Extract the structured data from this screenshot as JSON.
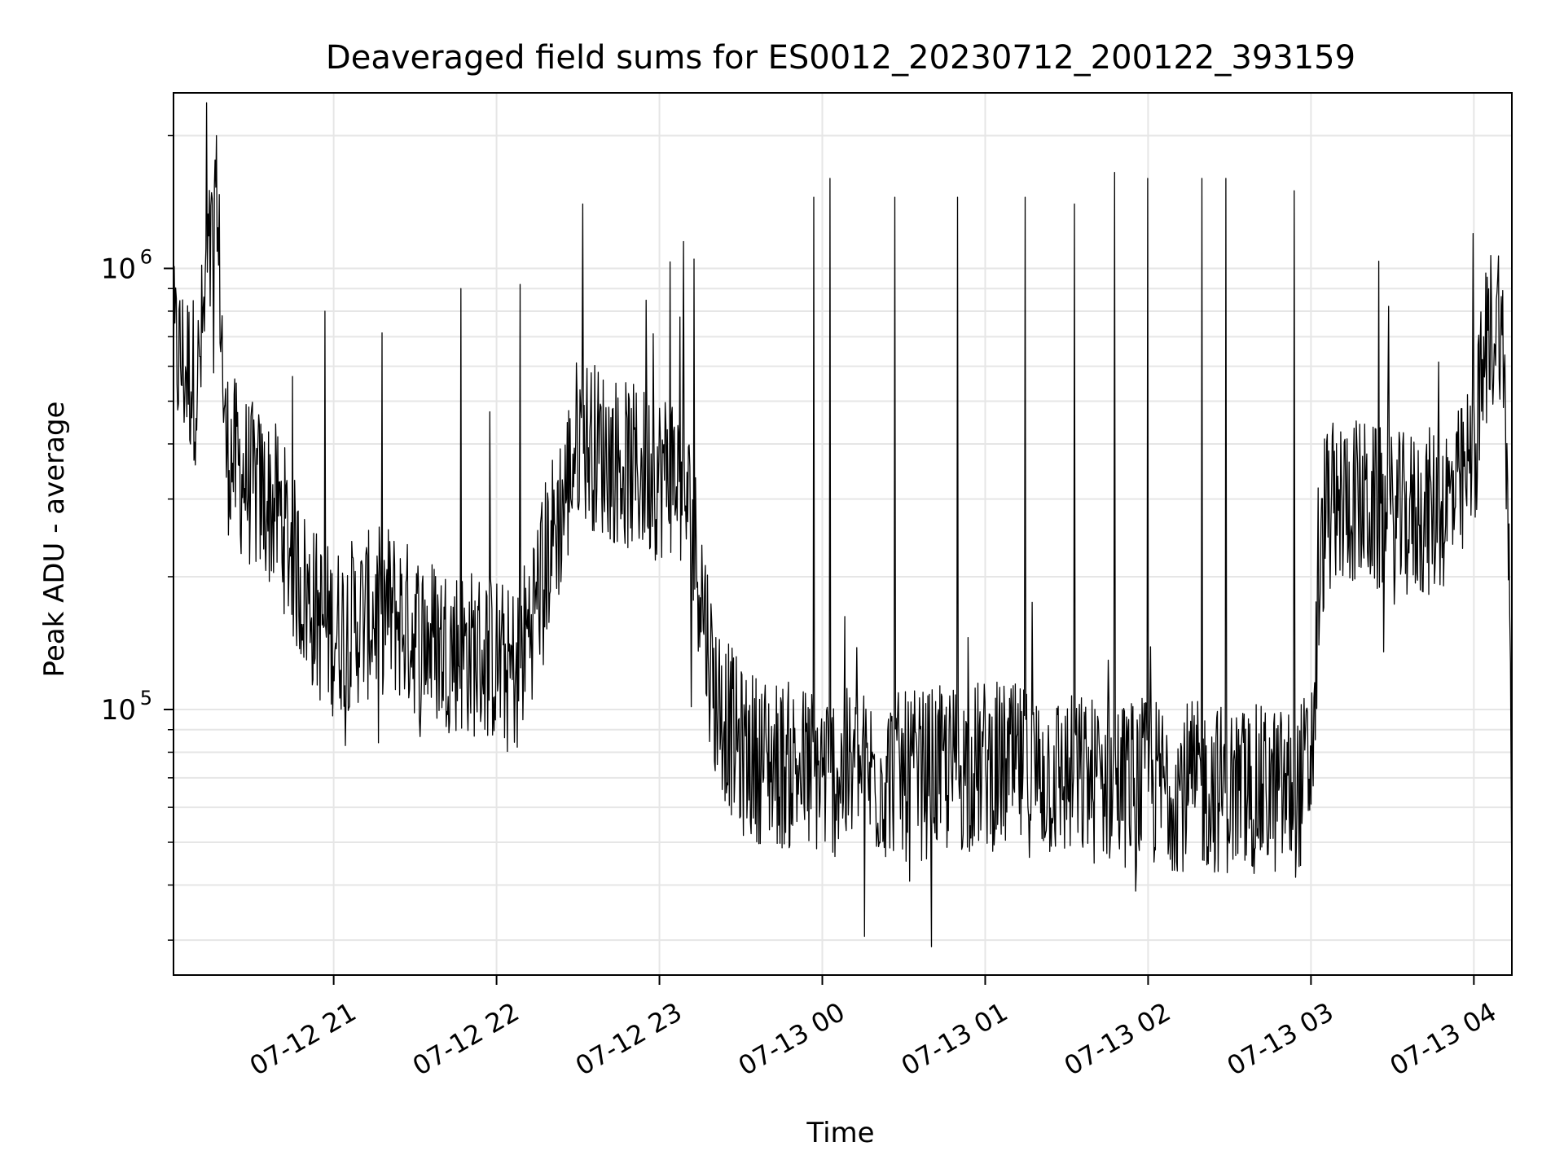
{
  "chart_data": {
    "type": "line",
    "title": "Deaveraged field sums for ES0012_20230712_200122_393159",
    "xlabel": "Time",
    "ylabel": "Peak ADU - average",
    "yscale": "log",
    "ylim": [
      25000,
      2500000
    ],
    "xlim": [
      "2023-07-12 20:01",
      "2023-07-13 04:14"
    ],
    "grid": true,
    "x_ticks": [
      "2023-07-12 21:00",
      "2023-07-12 22:00",
      "2023-07-12 23:00",
      "2023-07-13 00:00",
      "2023-07-13 01:00",
      "2023-07-13 02:00",
      "2023-07-13 03:00",
      "2023-07-13 04:00"
    ],
    "x_tick_labels": [
      "07-12 21",
      "07-12 22",
      "07-12 23",
      "07-13 00",
      "07-13 01",
      "07-13 02",
      "07-13 03",
      "07-13 04"
    ],
    "y_tick_labels": [
      {
        "value": 100000,
        "base": "10",
        "exp": "5"
      },
      {
        "value": 1000000,
        "base": "10",
        "exp": "6"
      }
    ],
    "series": [
      {
        "color": "#000000",
        "x": [
          "2023-07-12 20:01",
          "2023-07-12 20:05",
          "2023-07-12 20:10",
          "2023-07-12 20:14",
          "2023-07-12 20:16",
          "2023-07-12 20:18",
          "2023-07-12 20:20",
          "2023-07-12 20:25",
          "2023-07-12 20:30",
          "2023-07-12 20:35",
          "2023-07-12 20:40",
          "2023-07-12 20:45",
          "2023-07-12 20:50",
          "2023-07-12 20:55",
          "2023-07-12 21:00",
          "2023-07-12 21:10",
          "2023-07-12 21:20",
          "2023-07-12 21:30",
          "2023-07-12 21:40",
          "2023-07-12 21:50",
          "2023-07-12 22:00",
          "2023-07-12 22:05",
          "2023-07-12 22:10",
          "2023-07-12 22:20",
          "2023-07-12 22:25",
          "2023-07-12 22:30",
          "2023-07-12 22:40",
          "2023-07-12 22:50",
          "2023-07-12 23:00",
          "2023-07-12 23:05",
          "2023-07-12 23:10",
          "2023-07-12 23:15",
          "2023-07-12 23:20",
          "2023-07-12 23:30",
          "2023-07-12 23:45",
          "2023-07-13 00:00",
          "2023-07-13 00:30",
          "2023-07-13 01:00",
          "2023-07-13 01:30",
          "2023-07-13 02:00",
          "2023-07-13 02:30",
          "2023-07-13 02:55",
          "2023-07-13 03:00",
          "2023-07-13 03:05",
          "2023-07-13 03:15",
          "2023-07-13 03:30",
          "2023-07-13 03:45",
          "2023-07-13 03:55",
          "2023-07-13 04:00",
          "2023-07-13 04:05",
          "2023-07-13 04:10",
          "2023-07-13 04:13",
          "2023-07-13 04:14"
        ],
        "y": [
          650000,
          600000,
          550000,
          1000000,
          1150000,
          1000000,
          400000,
          350000,
          320000,
          300000,
          280000,
          220000,
          180000,
          160000,
          150000,
          160000,
          170000,
          150000,
          140000,
          135000,
          130000,
          120000,
          140000,
          240000,
          300000,
          420000,
          380000,
          350000,
          340000,
          350000,
          300000,
          200000,
          110000,
          80000,
          75000,
          72000,
          70000,
          75000,
          70000,
          68000,
          66000,
          65000,
          75000,
          280000,
          300000,
          270000,
          280000,
          310000,
          380000,
          700000,
          800000,
          250000,
          35000
        ],
        "spikes": [
          {
            "x": "2023-07-12 20:17",
            "y": 2000000
          },
          {
            "x": "2023-07-12 20:57",
            "y": 800000
          },
          {
            "x": "2023-07-12 21:47",
            "y": 900000
          },
          {
            "x": "2023-07-12 22:09",
            "y": 920000
          },
          {
            "x": "2023-07-12 22:32",
            "y": 1400000
          },
          {
            "x": "2023-07-12 23:13",
            "y": 1050000
          },
          {
            "x": "2023-07-12 23:57",
            "y": 1450000
          },
          {
            "x": "2023-07-13 00:03",
            "y": 1600000
          },
          {
            "x": "2023-07-13 00:27",
            "y": 1450000
          },
          {
            "x": "2023-07-13 00:50",
            "y": 1450000
          },
          {
            "x": "2023-07-13 01:15",
            "y": 1450000
          },
          {
            "x": "2023-07-13 01:33",
            "y": 1400000
          },
          {
            "x": "2023-07-13 01:48",
            "y": 1650000
          },
          {
            "x": "2023-07-13 02:00",
            "y": 1600000
          },
          {
            "x": "2023-07-13 02:20",
            "y": 1600000
          },
          {
            "x": "2023-07-13 02:29",
            "y": 1600000
          },
          {
            "x": "2023-07-13 02:54",
            "y": 1500000
          },
          {
            "x": "2023-07-13 04:00",
            "y": 1200000
          }
        ]
      }
    ]
  }
}
